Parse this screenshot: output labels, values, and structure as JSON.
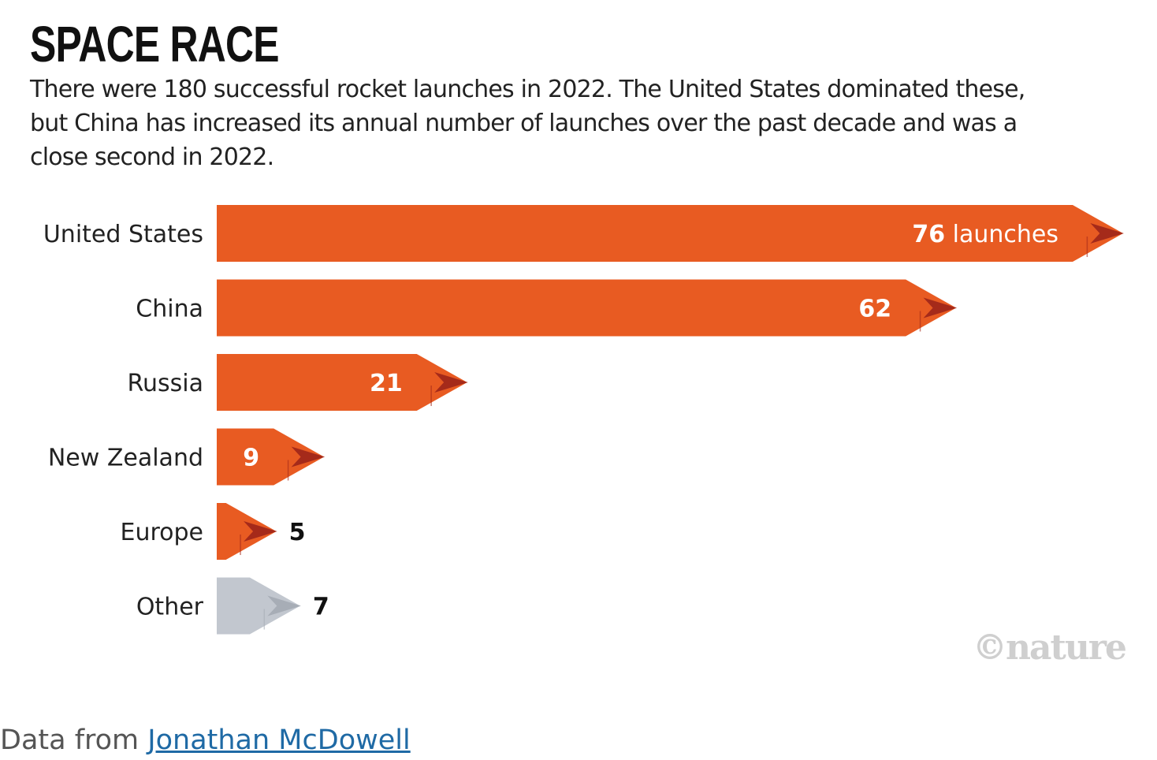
{
  "chart_data": {
    "type": "bar",
    "orientation": "horizontal",
    "title": "SPACE RACE",
    "subtitle": "There were 180 successful rocket launches in 2022. The United States dominated these, but China has increased its annual number of launches over the past decade and was a close second in 2022.",
    "categories": [
      "United States",
      "China",
      "Russia",
      "New Zealand",
      "Europe",
      "Other"
    ],
    "values": [
      76,
      62,
      21,
      9,
      5,
      7
    ],
    "value_labels": [
      "76",
      "62",
      "21",
      "9",
      "5",
      "7"
    ],
    "first_value_unit": "launches",
    "colors": [
      "#e85b22",
      "#e85b22",
      "#e85b22",
      "#e85b22",
      "#e85b22",
      "#c2c7cf"
    ],
    "tip_colors": [
      "#a52a1a",
      "#a52a1a",
      "#a52a1a",
      "#a52a1a",
      "#a52a1a",
      "#a7adb6"
    ],
    "xlim": [
      0,
      76
    ],
    "grid": false,
    "legend": "none",
    "xlabel": "",
    "ylabel": ""
  },
  "logo_text": "©nature",
  "source": {
    "prefix": "Data from ",
    "link_text": "Jonathan McDowell"
  }
}
